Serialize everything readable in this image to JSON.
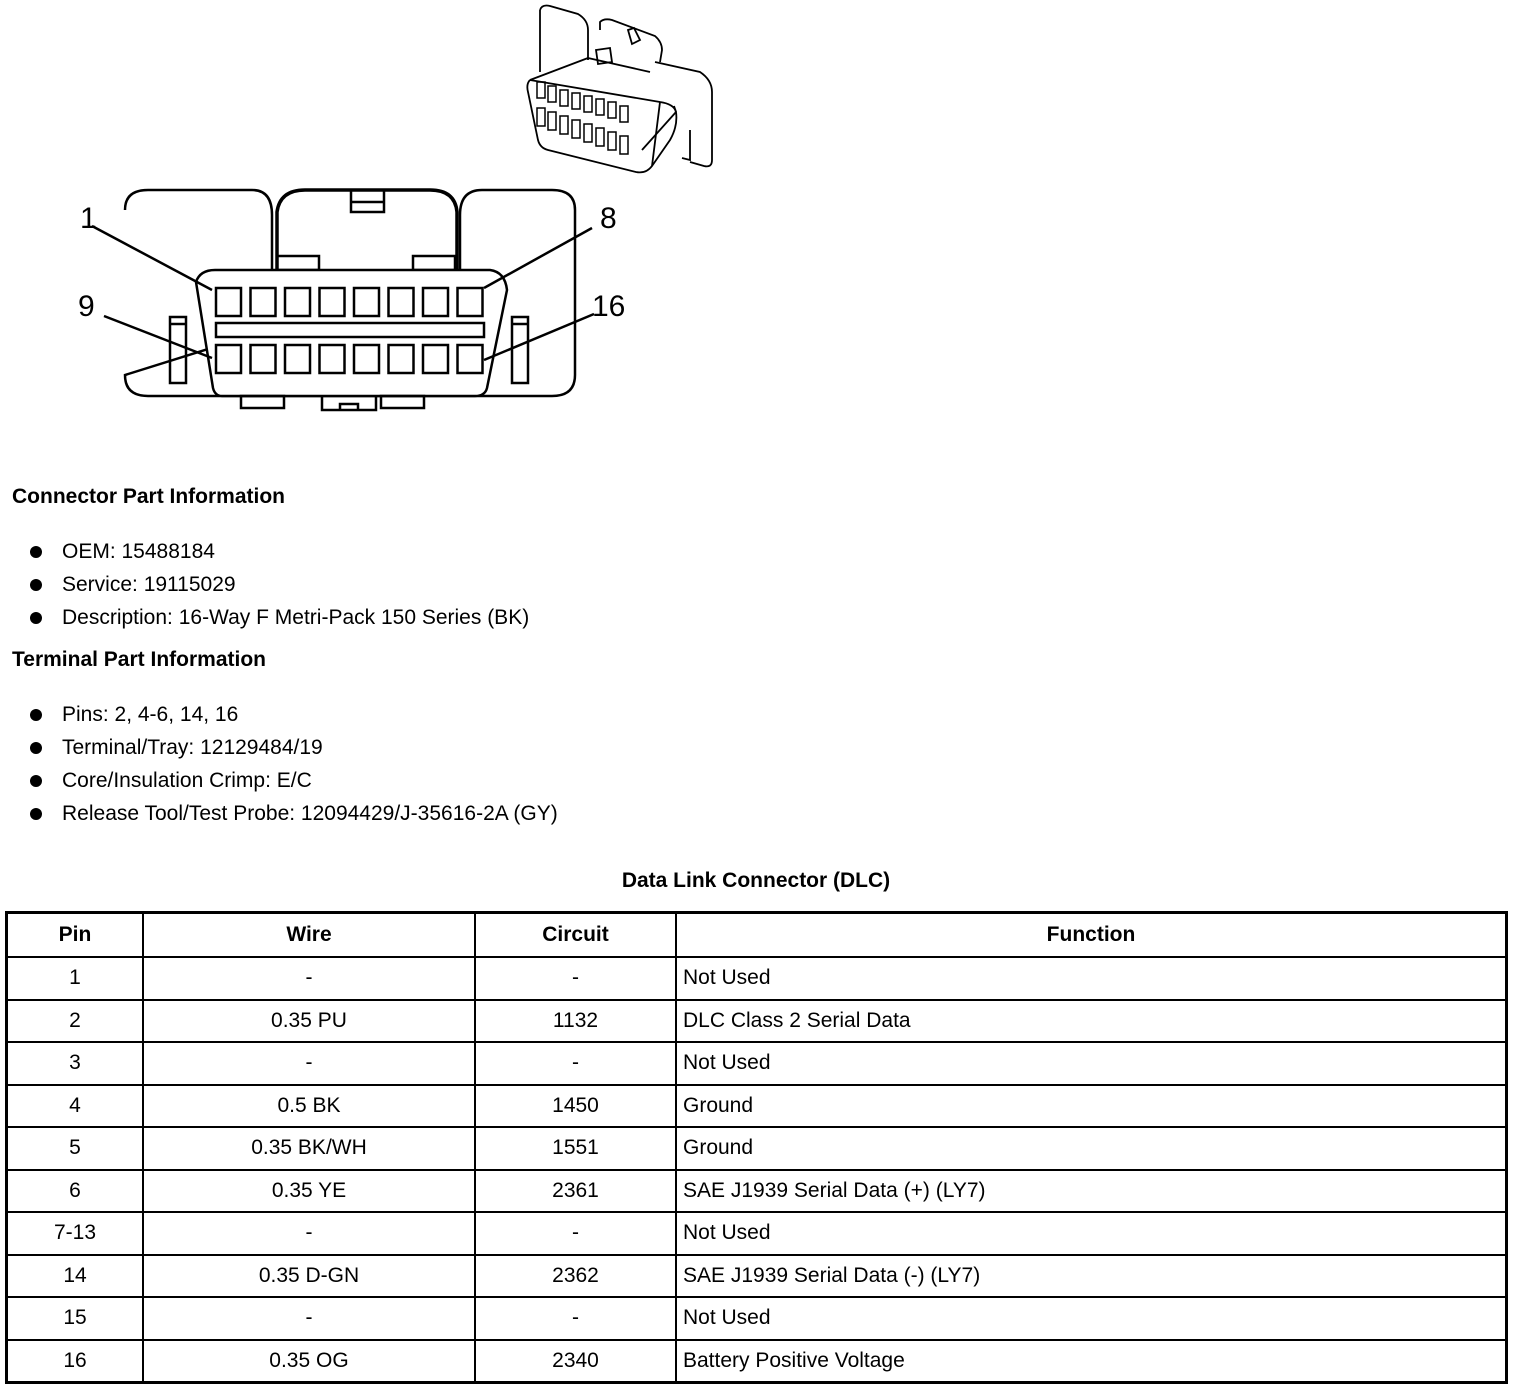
{
  "diagram": {
    "pin_labels": [
      "1",
      "8",
      "9",
      "16"
    ]
  },
  "connector": {
    "title": "Connector Part Information",
    "items": [
      "OEM: 15488184",
      "Service: 19115029",
      "Description: 16-Way F Metri-Pack 150 Series (BK)"
    ]
  },
  "terminal": {
    "title": "Terminal Part Information",
    "items": [
      "Pins: 2, 4-6, 14, 16",
      "Terminal/Tray: 12129484/19",
      "Core/Insulation Crimp: E/C",
      "Release Tool/Test Probe: 12094429/J-35616-2A (GY)"
    ]
  },
  "table": {
    "caption": "Data Link Connector (DLC)",
    "headers": [
      "Pin",
      "Wire",
      "Circuit",
      "Function"
    ],
    "rows": [
      [
        "1",
        "-",
        "-",
        "Not Used"
      ],
      [
        "2",
        "0.35 PU",
        "1132",
        "DLC Class 2 Serial Data"
      ],
      [
        "3",
        "-",
        "-",
        "Not Used"
      ],
      [
        "4",
        "0.5 BK",
        "1450",
        "Ground"
      ],
      [
        "5",
        "0.35 BK/WH",
        "1551",
        "Ground"
      ],
      [
        "6",
        "0.35 YE",
        "2361",
        "SAE J1939 Serial Data (+) (LY7)"
      ],
      [
        "7-13",
        "-",
        "-",
        "Not Used"
      ],
      [
        "14",
        "0.35 D-GN",
        "2362",
        "SAE J1939 Serial Data (-) (LY7)"
      ],
      [
        "15",
        "-",
        "-",
        "Not Used"
      ],
      [
        "16",
        "0.35 OG",
        "2340",
        "Battery Positive Voltage"
      ]
    ]
  }
}
